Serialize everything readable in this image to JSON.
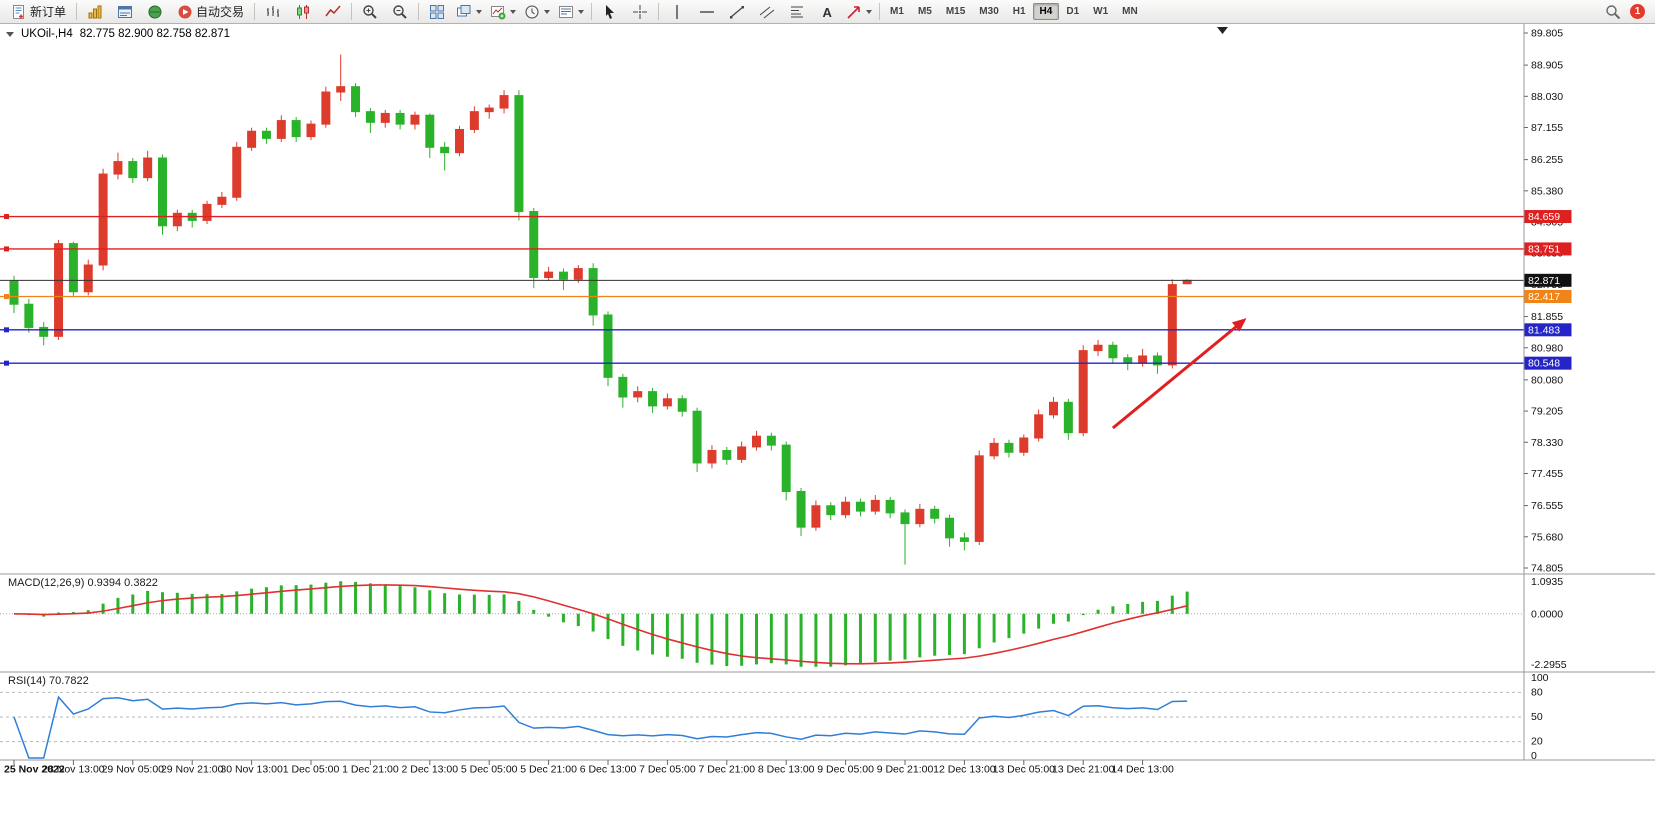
{
  "toolbar": {
    "new_order": "新订单",
    "auto_trading": "自动交易",
    "timeframes": [
      "M1",
      "M5",
      "M15",
      "M30",
      "H1",
      "H4",
      "D1",
      "W1",
      "MN"
    ],
    "active_timeframe": "H4",
    "badge_count": "1"
  },
  "chart": {
    "symbol_period": "UKOil-,H4",
    "quote_line": "82.775 82.900 82.758 82.871"
  },
  "indicators": {
    "macd_label": "MACD(12,26,9) 0.9394 0.3822",
    "rsi_label": "RSI(14) 70.7822"
  },
  "chart_data": {
    "type": "candlestick",
    "symbol": "UKOil-",
    "timeframe": "H4",
    "last_quote": {
      "open": 82.775,
      "high": 82.9,
      "low": 82.758,
      "close": 82.871
    },
    "bull_color": "#dd3c2c",
    "bear_color": "#2bb22b",
    "ohlc": [
      [
        82.85,
        83.0,
        81.95,
        82.2
      ],
      [
        82.2,
        82.35,
        81.4,
        81.55
      ],
      [
        81.55,
        81.7,
        81.05,
        81.3
      ],
      [
        81.3,
        84.0,
        81.2,
        83.9
      ],
      [
        83.9,
        83.95,
        82.4,
        82.55
      ],
      [
        82.55,
        83.45,
        82.45,
        83.3
      ],
      [
        83.3,
        86.0,
        83.15,
        85.85
      ],
      [
        85.85,
        86.45,
        85.7,
        86.2
      ],
      [
        86.2,
        86.3,
        85.6,
        85.75
      ],
      [
        85.75,
        86.5,
        85.65,
        86.3
      ],
      [
        86.3,
        86.4,
        84.15,
        84.4
      ],
      [
        84.4,
        84.85,
        84.25,
        84.75
      ],
      [
        84.75,
        84.85,
        84.35,
        84.55
      ],
      [
        84.55,
        85.1,
        84.45,
        85.0
      ],
      [
        85.0,
        85.35,
        84.9,
        85.2
      ],
      [
        85.2,
        86.75,
        85.1,
        86.6
      ],
      [
        86.6,
        87.15,
        86.5,
        87.05
      ],
      [
        87.05,
        87.15,
        86.7,
        86.85
      ],
      [
        86.85,
        87.5,
        86.75,
        87.35
      ],
      [
        87.35,
        87.45,
        86.75,
        86.9
      ],
      [
        86.9,
        87.35,
        86.8,
        87.25
      ],
      [
        87.25,
        88.3,
        87.15,
        88.15
      ],
      [
        88.15,
        89.2,
        87.9,
        88.3
      ],
      [
        88.3,
        88.4,
        87.45,
        87.6
      ],
      [
        87.6,
        87.7,
        87.0,
        87.3
      ],
      [
        87.3,
        87.65,
        87.15,
        87.55
      ],
      [
        87.55,
        87.65,
        87.1,
        87.25
      ],
      [
        87.25,
        87.6,
        87.1,
        87.5
      ],
      [
        87.5,
        87.55,
        86.3,
        86.6
      ],
      [
        86.6,
        86.75,
        85.95,
        86.45
      ],
      [
        86.45,
        87.2,
        86.35,
        87.1
      ],
      [
        87.1,
        87.75,
        87.0,
        87.6
      ],
      [
        87.6,
        87.8,
        87.4,
        87.7
      ],
      [
        87.7,
        88.2,
        87.55,
        88.05
      ],
      [
        88.05,
        88.2,
        84.55,
        84.8
      ],
      [
        84.8,
        84.9,
        82.65,
        82.95
      ],
      [
        82.95,
        83.25,
        82.85,
        83.1
      ],
      [
        83.1,
        83.2,
        82.6,
        82.9
      ],
      [
        82.9,
        83.3,
        82.8,
        83.2
      ],
      [
        83.2,
        83.35,
        81.6,
        81.9
      ],
      [
        81.9,
        82.0,
        79.9,
        80.15
      ],
      [
        80.15,
        80.25,
        79.3,
        79.6
      ],
      [
        79.6,
        79.9,
        79.45,
        79.75
      ],
      [
        79.75,
        79.85,
        79.15,
        79.35
      ],
      [
        79.35,
        79.7,
        79.25,
        79.55
      ],
      [
        79.55,
        79.65,
        79.05,
        79.2
      ],
      [
        79.2,
        79.3,
        77.5,
        77.75
      ],
      [
        77.75,
        78.25,
        77.6,
        78.1
      ],
      [
        78.1,
        78.2,
        77.7,
        77.85
      ],
      [
        77.85,
        78.35,
        77.75,
        78.2
      ],
      [
        78.2,
        78.65,
        78.1,
        78.5
      ],
      [
        78.5,
        78.6,
        78.1,
        78.25
      ],
      [
        78.25,
        78.35,
        76.7,
        76.95
      ],
      [
        76.95,
        77.05,
        75.7,
        75.95
      ],
      [
        75.95,
        76.7,
        75.85,
        76.55
      ],
      [
        76.55,
        76.65,
        76.15,
        76.3
      ],
      [
        76.3,
        76.8,
        76.2,
        76.65
      ],
      [
        76.65,
        76.75,
        76.25,
        76.4
      ],
      [
        76.4,
        76.85,
        76.3,
        76.7
      ],
      [
        76.7,
        76.8,
        76.2,
        76.35
      ],
      [
        76.35,
        76.45,
        74.9,
        76.05
      ],
      [
        76.05,
        76.6,
        75.95,
        76.45
      ],
      [
        76.45,
        76.55,
        76.05,
        76.2
      ],
      [
        76.2,
        76.3,
        75.4,
        75.65
      ],
      [
        75.65,
        75.8,
        75.3,
        75.55
      ],
      [
        75.55,
        78.1,
        75.45,
        77.95
      ],
      [
        77.95,
        78.45,
        77.85,
        78.3
      ],
      [
        78.3,
        78.4,
        77.9,
        78.05
      ],
      [
        78.05,
        78.55,
        77.95,
        78.45
      ],
      [
        78.45,
        79.25,
        78.35,
        79.1
      ],
      [
        79.1,
        79.6,
        79.0,
        79.45
      ],
      [
        79.45,
        79.55,
        78.4,
        78.6
      ],
      [
        78.6,
        81.05,
        78.5,
        80.9
      ],
      [
        80.9,
        81.2,
        80.75,
        81.05
      ],
      [
        81.05,
        81.15,
        80.55,
        80.7
      ],
      [
        80.7,
        80.8,
        80.35,
        80.55
      ],
      [
        80.55,
        80.95,
        80.45,
        80.75
      ],
      [
        80.75,
        80.85,
        80.25,
        80.5
      ],
      [
        80.5,
        82.9,
        80.4,
        82.75
      ],
      [
        82.775,
        82.9,
        82.758,
        82.871
      ]
    ],
    "label_every_n_candles": 4,
    "time_labels": [
      "25 Nov 2022",
      "28 Nov 13:00",
      "29 Nov 05:00",
      "29 Nov 21:00",
      "30 Nov 13:00",
      "1 Dec 05:00",
      "1 Dec 21:00",
      "2 Dec 13:00",
      "5 Dec 05:00",
      "5 Dec 21:00",
      "6 Dec 13:00",
      "7 Dec 05:00",
      "7 Dec 21:00",
      "8 Dec 13:00",
      "9 Dec 05:00",
      "9 Dec 21:00",
      "12 Dec 13:00",
      "13 Dec 05:00",
      "13 Dec 21:00",
      "14 Dec 13:00"
    ],
    "price_ticks": [
      "89.805",
      "88.905",
      "88.030",
      "87.155",
      "86.255",
      "85.380",
      "84.505",
      "83.630",
      "82.755",
      "81.855",
      "80.980",
      "80.080",
      "79.205",
      "78.330",
      "77.455",
      "76.555",
      "75.680",
      "74.805"
    ],
    "hlines": [
      {
        "label": "84.659",
        "value": 84.659,
        "color": "#dd2020"
      },
      {
        "label": "83.751",
        "value": 83.751,
        "color": "#dd2020"
      },
      {
        "label": "82.417",
        "value": 82.417,
        "color": "#f08418"
      },
      {
        "label": "81.483",
        "value": 81.483,
        "color": "#2424c8"
      },
      {
        "label": "80.548",
        "value": 80.548,
        "color": "#2424c8"
      }
    ],
    "bid_line": {
      "label": "82.871",
      "value": 82.871,
      "color": "#333333"
    },
    "arrow_annotation": {
      "from_bar": 74,
      "from_price": 78.73,
      "to_bar": 83,
      "to_price": 81.81,
      "color": "#e02020"
    },
    "macd": {
      "fast": 12,
      "slow": 26,
      "signal": 9,
      "value": 0.9394,
      "signal_value": 0.3822,
      "histogram_color": "#2bb22b",
      "signal_color": "#e03030",
      "scale_labels": [
        "1.0935",
        "0.0000",
        "-2.2955"
      ]
    },
    "rsi": {
      "period": 14,
      "value": 70.7822,
      "line_color": "#2f7ed8",
      "levels": [
        80,
        50,
        20
      ],
      "scale_labels": [
        "100",
        "80",
        "50",
        "20",
        "0"
      ]
    }
  }
}
